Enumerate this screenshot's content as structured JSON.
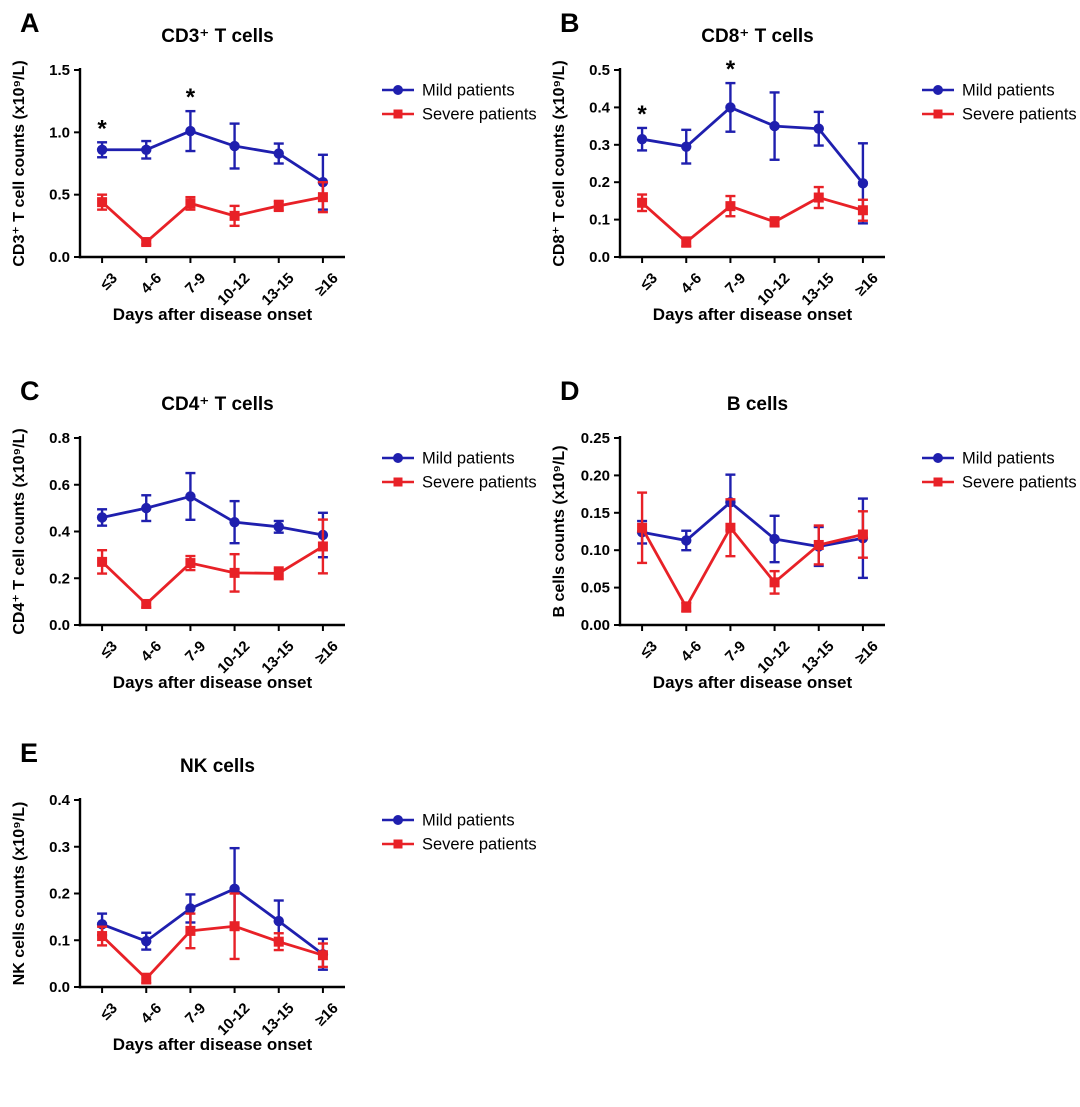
{
  "figure": {
    "background": "#ffffff",
    "axis_color": "#000000",
    "mild_color": "#1f1fae",
    "severe_color": "#e82127",
    "legend_labels": [
      "Mild patients",
      "Severe patients"
    ],
    "significance_symbol": "*"
  },
  "chart_data": [
    {
      "type": "line",
      "panel_label": "A",
      "title": "CD3⁺ T cells",
      "ylabel": "CD3⁺ T cell counts (x10⁹/L)",
      "xlabel": "Days after disease onset",
      "categories": [
        "≤3",
        "4-6",
        "7-9",
        "10-12",
        "13-15",
        "≥16"
      ],
      "ylim": [
        0,
        1.5
      ],
      "yticks": [
        0,
        0.5,
        1.0,
        1.5
      ],
      "ytick_decimals": 1,
      "grid": false,
      "legend_position": "right",
      "series": [
        {
          "name": "Mild patients",
          "marker": "circle",
          "color": "#1f1fae",
          "values": [
            0.86,
            0.86,
            1.01,
            0.89,
            0.83,
            0.6
          ],
          "errors": [
            0.06,
            0.07,
            0.16,
            0.18,
            0.08,
            0.22
          ]
        },
        {
          "name": "Severe patients",
          "marker": "square",
          "color": "#e82127",
          "values": [
            0.44,
            0.12,
            0.43,
            0.33,
            0.41,
            0.48
          ],
          "errors": [
            0.06,
            0.02,
            0.05,
            0.08,
            0.04,
            0.12
          ]
        }
      ],
      "significance": [
        {
          "category_index": 0,
          "symbol": "*"
        },
        {
          "category_index": 2,
          "symbol": "*"
        }
      ]
    },
    {
      "type": "line",
      "panel_label": "B",
      "title": "CD8⁺ T cells",
      "ylabel": "CD8⁺ T cell counts (x10⁹/L)",
      "xlabel": "Days after disease onset",
      "categories": [
        "≤3",
        "4-6",
        "7-9",
        "10-12",
        "13-15",
        "≥16"
      ],
      "ylim": [
        0,
        0.5
      ],
      "yticks": [
        0,
        0.1,
        0.2,
        0.3,
        0.4,
        0.5
      ],
      "ytick_decimals": 1,
      "grid": false,
      "legend_position": "right",
      "series": [
        {
          "name": "Mild patients",
          "marker": "circle",
          "color": "#1f1fae",
          "values": [
            0.315,
            0.295,
            0.4,
            0.35,
            0.343,
            0.197
          ],
          "errors": [
            0.03,
            0.045,
            0.065,
            0.09,
            0.045,
            0.107
          ]
        },
        {
          "name": "Severe patients",
          "marker": "square",
          "color": "#e82127",
          "values": [
            0.145,
            0.04,
            0.136,
            0.094,
            0.159,
            0.125
          ],
          "errors": [
            0.022,
            0.012,
            0.027,
            0.012,
            0.028,
            0.028
          ]
        }
      ],
      "significance": [
        {
          "category_index": 0,
          "symbol": "*"
        },
        {
          "category_index": 2,
          "symbol": "*"
        }
      ]
    },
    {
      "type": "line",
      "panel_label": "C",
      "title": "CD4⁺ T cells",
      "ylabel": "CD4⁺ T cell counts (x10⁹/L)",
      "xlabel": "Days after disease onset",
      "categories": [
        "≤3",
        "4-6",
        "7-9",
        "10-12",
        "13-15",
        "≥16"
      ],
      "ylim": [
        0,
        0.8
      ],
      "yticks": [
        0,
        0.2,
        0.4,
        0.6,
        0.8
      ],
      "ytick_decimals": 1,
      "grid": false,
      "legend_position": "right",
      "series": [
        {
          "name": "Mild patients",
          "marker": "circle",
          "color": "#1f1fae",
          "values": [
            0.46,
            0.5,
            0.55,
            0.44,
            0.42,
            0.385
          ],
          "errors": [
            0.035,
            0.055,
            0.1,
            0.09,
            0.025,
            0.095
          ]
        },
        {
          "name": "Severe patients",
          "marker": "square",
          "color": "#e82127",
          "values": [
            0.27,
            0.09,
            0.265,
            0.223,
            0.221,
            0.336
          ],
          "errors": [
            0.05,
            0.015,
            0.03,
            0.08,
            0.025,
            0.115
          ]
        }
      ],
      "significance": []
    },
    {
      "type": "line",
      "panel_label": "D",
      "title": "B cells",
      "ylabel": "B cells counts (x10⁹/L)",
      "xlabel": "Days after disease onset",
      "categories": [
        "≤3",
        "4-6",
        "7-9",
        "10-12",
        "13-15",
        "≥16"
      ],
      "ylim": [
        0,
        0.25
      ],
      "yticks": [
        0,
        0.05,
        0.1,
        0.15,
        0.2,
        0.25
      ],
      "ytick_decimals": 2,
      "grid": false,
      "legend_position": "right",
      "series": [
        {
          "name": "Mild patients",
          "marker": "circle",
          "color": "#1f1fae",
          "values": [
            0.124,
            0.113,
            0.164,
            0.115,
            0.105,
            0.116
          ],
          "errors": [
            0.015,
            0.013,
            0.037,
            0.031,
            0.026,
            0.053
          ]
        },
        {
          "name": "Severe patients",
          "marker": "square",
          "color": "#e82127",
          "values": [
            0.13,
            0.024,
            0.13,
            0.057,
            0.107,
            0.121
          ],
          "errors": [
            0.047,
            0.006,
            0.038,
            0.015,
            0.026,
            0.031
          ]
        }
      ],
      "significance": []
    },
    {
      "type": "line",
      "panel_label": "E",
      "title": "NK cells",
      "ylabel": "NK cells counts (x10⁹/L)",
      "xlabel": "Days after disease onset",
      "categories": [
        "≤3",
        "4-6",
        "7-9",
        "10-12",
        "13-15",
        "≥16"
      ],
      "ylim": [
        0,
        0.4
      ],
      "yticks": [
        0,
        0.1,
        0.2,
        0.3,
        0.4
      ],
      "ytick_decimals": 1,
      "grid": false,
      "legend_position": "right",
      "series": [
        {
          "name": "Mild patients",
          "marker": "circle",
          "color": "#1f1fae",
          "values": [
            0.134,
            0.098,
            0.168,
            0.21,
            0.141,
            0.07
          ],
          "errors": [
            0.023,
            0.018,
            0.03,
            0.087,
            0.044,
            0.033
          ]
        },
        {
          "name": "Severe patients",
          "marker": "square",
          "color": "#e82127",
          "values": [
            0.109,
            0.018,
            0.12,
            0.13,
            0.097,
            0.068
          ],
          "errors": [
            0.02,
            0.01,
            0.037,
            0.07,
            0.018,
            0.025
          ]
        }
      ],
      "significance": []
    }
  ]
}
